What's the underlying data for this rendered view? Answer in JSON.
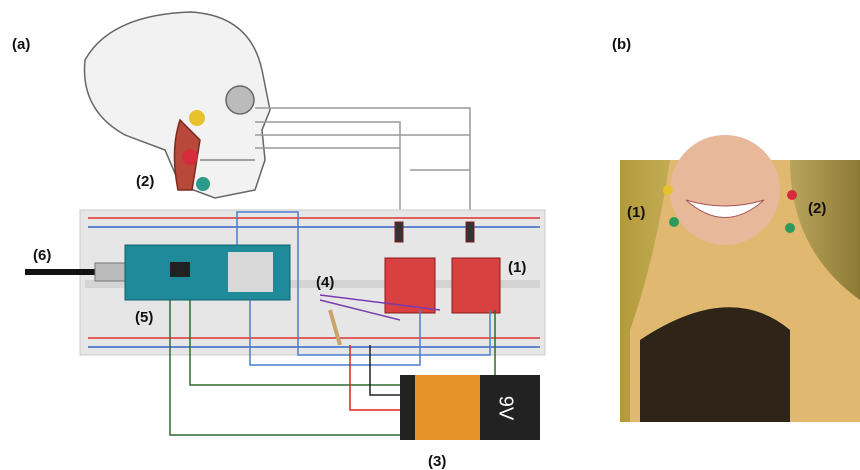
{
  "panels": {
    "a": {
      "label": "(a)",
      "callouts": [
        "(1)",
        "(2)",
        "(3)",
        "(4)",
        "(5)",
        "(6)"
      ],
      "battery": "9V"
    },
    "b": {
      "label": "(b)",
      "callouts": [
        "(1)",
        "(2)"
      ]
    }
  }
}
